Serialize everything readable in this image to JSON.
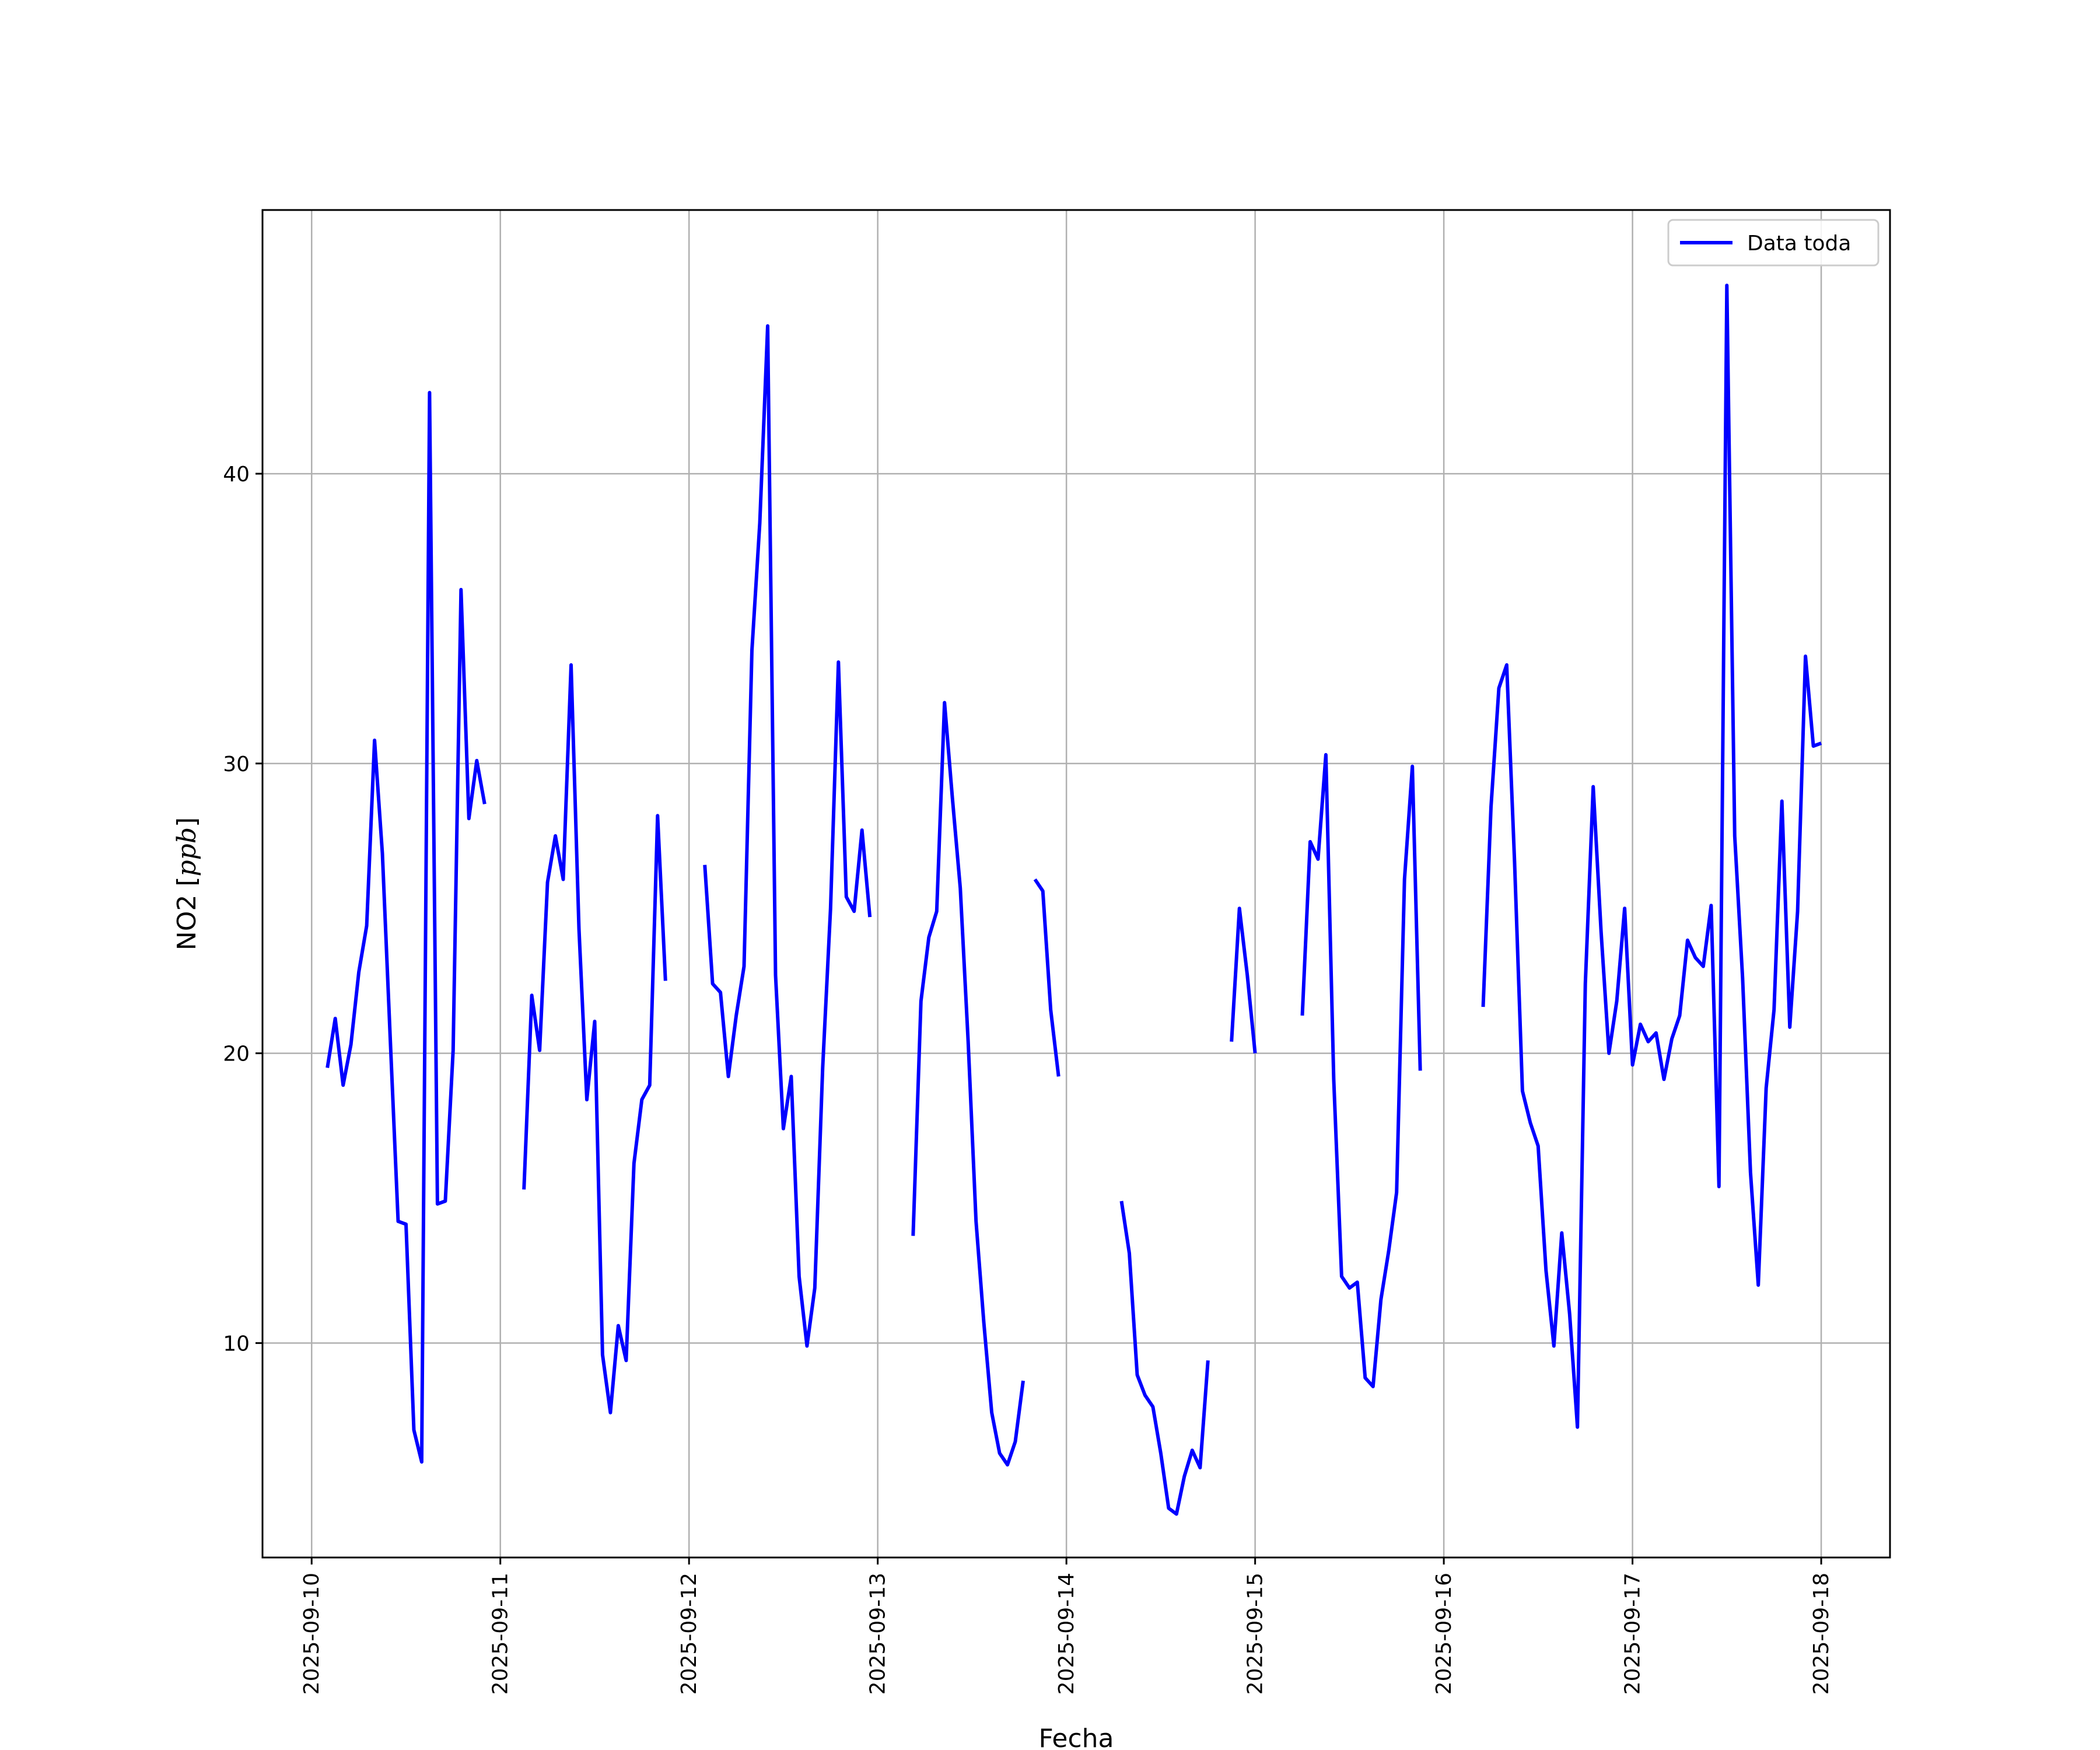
{
  "chart_data": {
    "type": "line",
    "xlabel": "Fecha",
    "ylabel_main": "NO2 [",
    "ylabel_unit": "ppb",
    "ylabel_close": "]",
    "x_ticks": [
      "2025-09-10",
      "2025-09-11",
      "2025-09-12",
      "2025-09-13",
      "2025-09-14",
      "2025-09-15",
      "2025-09-16",
      "2025-09-17",
      "2025-09-18"
    ],
    "y_ticks": [
      10,
      20,
      30,
      40
    ],
    "xlim": [
      "2025-09-09T17:45",
      "2025-09-18T08:45"
    ],
    "ylim": [
      2.6,
      49.1
    ],
    "grid": true,
    "legend_position": "top-right",
    "series": [
      {
        "name": "Data toda",
        "color": "#0000ff",
        "segments": [
          [
            [
              "2025-09-10T02:00",
              19.5
            ],
            [
              "2025-09-10T03:00",
              21.2
            ],
            [
              "2025-09-10T04:00",
              18.9
            ],
            [
              "2025-09-10T05:00",
              20.3
            ],
            [
              "2025-09-10T06:00",
              22.8
            ],
            [
              "2025-09-10T07:00",
              24.4
            ],
            [
              "2025-09-10T08:00",
              30.8
            ],
            [
              "2025-09-10T09:00",
              26.9
            ],
            [
              "2025-09-10T10:00",
              20.5
            ],
            [
              "2025-09-10T11:00",
              14.2
            ],
            [
              "2025-09-10T12:00",
              14.1
            ],
            [
              "2025-09-10T13:00",
              7.0
            ],
            [
              "2025-09-10T14:00",
              5.9
            ],
            [
              "2025-09-10T15:00",
              42.8
            ],
            [
              "2025-09-10T16:00",
              14.8
            ],
            [
              "2025-09-10T17:00",
              14.9
            ],
            [
              "2025-09-10T18:00",
              20.1
            ],
            [
              "2025-09-10T19:00",
              36.0
            ],
            [
              "2025-09-10T20:00",
              28.1
            ],
            [
              "2025-09-10T21:00",
              30.1
            ],
            [
              "2025-09-10T22:00",
              28.6
            ]
          ],
          [
            [
              "2025-09-11T03:00",
              15.3
            ],
            [
              "2025-09-11T04:00",
              22.0
            ],
            [
              "2025-09-11T05:00",
              20.1
            ],
            [
              "2025-09-11T06:00",
              25.9
            ],
            [
              "2025-09-11T07:00",
              27.5
            ],
            [
              "2025-09-11T08:00",
              26.0
            ],
            [
              "2025-09-11T09:00",
              33.4
            ],
            [
              "2025-09-11T10:00",
              24.3
            ],
            [
              "2025-09-11T11:00",
              18.4
            ],
            [
              "2025-09-11T12:00",
              21.1
            ],
            [
              "2025-09-11T13:00",
              9.6
            ],
            [
              "2025-09-11T14:00",
              7.6
            ],
            [
              "2025-09-11T15:00",
              10.6
            ],
            [
              "2025-09-11T16:00",
              9.4
            ],
            [
              "2025-09-11T17:00",
              16.2
            ],
            [
              "2025-09-11T18:00",
              18.4
            ],
            [
              "2025-09-11T19:00",
              18.9
            ],
            [
              "2025-09-11T20:00",
              28.2
            ],
            [
              "2025-09-11T21:00",
              22.5
            ]
          ],
          [
            [
              "2025-09-12T02:00",
              26.5
            ],
            [
              "2025-09-12T03:00",
              22.4
            ],
            [
              "2025-09-12T04:00",
              22.1
            ],
            [
              "2025-09-12T05:00",
              19.2
            ],
            [
              "2025-09-12T06:00",
              21.3
            ],
            [
              "2025-09-12T07:00",
              23.0
            ],
            [
              "2025-09-12T08:00",
              33.9
            ],
            [
              "2025-09-12T09:00",
              38.3
            ],
            [
              "2025-09-12T10:00",
              45.1
            ],
            [
              "2025-09-12T11:00",
              22.7
            ],
            [
              "2025-09-12T12:00",
              17.4
            ],
            [
              "2025-09-12T13:00",
              19.2
            ],
            [
              "2025-09-12T14:00",
              12.3
            ],
            [
              "2025-09-12T15:00",
              9.9
            ],
            [
              "2025-09-12T16:00",
              11.9
            ],
            [
              "2025-09-12T17:00",
              19.5
            ],
            [
              "2025-09-12T18:00",
              25.0
            ],
            [
              "2025-09-12T19:00",
              33.5
            ],
            [
              "2025-09-12T20:00",
              25.4
            ],
            [
              "2025-09-12T21:00",
              24.9
            ],
            [
              "2025-09-12T22:00",
              27.7
            ],
            [
              "2025-09-12T23:00",
              24.7
            ]
          ],
          [
            [
              "2025-09-13T04:30",
              13.7
            ],
            [
              "2025-09-13T05:30",
              21.8
            ],
            [
              "2025-09-13T06:30",
              24.0
            ],
            [
              "2025-09-13T07:30",
              24.9
            ],
            [
              "2025-09-13T08:30",
              32.1
            ],
            [
              "2025-09-13T09:30",
              28.8
            ],
            [
              "2025-09-13T10:30",
              25.7
            ],
            [
              "2025-09-13T11:30",
              20.4
            ],
            [
              "2025-09-13T12:30",
              14.2
            ],
            [
              "2025-09-13T13:30",
              10.7
            ],
            [
              "2025-09-13T14:30",
              7.6
            ],
            [
              "2025-09-13T15:30",
              6.2
            ],
            [
              "2025-09-13T16:30",
              5.8
            ],
            [
              "2025-09-13T17:30",
              6.6
            ],
            [
              "2025-09-13T18:30",
              8.7
            ]
          ],
          [
            [
              "2025-09-13T20:00",
              26.0
            ],
            [
              "2025-09-13T21:00",
              25.6
            ],
            [
              "2025-09-13T22:00",
              21.5
            ],
            [
              "2025-09-13T23:00",
              19.2
            ]
          ],
          [
            [
              "2025-09-14T07:00",
              14.9
            ],
            [
              "2025-09-14T08:00",
              13.1
            ],
            [
              "2025-09-14T09:00",
              8.9
            ],
            [
              "2025-09-14T10:00",
              8.2
            ],
            [
              "2025-09-14T11:00",
              7.8
            ],
            [
              "2025-09-14T12:00",
              6.2
            ],
            [
              "2025-09-14T13:00",
              4.3
            ],
            [
              "2025-09-14T14:00",
              4.1
            ],
            [
              "2025-09-14T15:00",
              5.4
            ],
            [
              "2025-09-14T16:00",
              6.3
            ],
            [
              "2025-09-14T17:00",
              5.7
            ],
            [
              "2025-09-14T18:00",
              9.4
            ]
          ],
          [
            [
              "2025-09-14T21:00",
              20.4
            ],
            [
              "2025-09-14T22:00",
              25.0
            ],
            [
              "2025-09-14T23:00",
              22.7
            ],
            [
              "2025-09-15T00:00",
              20.0
            ]
          ],
          [
            [
              "2025-09-15T06:00",
              21.3
            ],
            [
              "2025-09-15T07:00",
              27.3
            ],
            [
              "2025-09-15T08:00",
              26.7
            ],
            [
              "2025-09-15T09:00",
              30.3
            ],
            [
              "2025-09-15T10:00",
              19.1
            ],
            [
              "2025-09-15T11:00",
              12.3
            ],
            [
              "2025-09-15T12:00",
              11.9
            ],
            [
              "2025-09-15T13:00",
              12.1
            ],
            [
              "2025-09-15T14:00",
              8.8
            ],
            [
              "2025-09-15T15:00",
              8.5
            ],
            [
              "2025-09-15T16:00",
              11.5
            ],
            [
              "2025-09-15T17:00",
              13.2
            ],
            [
              "2025-09-15T18:00",
              15.2
            ],
            [
              "2025-09-15T19:00",
              26.0
            ],
            [
              "2025-09-15T20:00",
              29.9
            ],
            [
              "2025-09-15T21:00",
              19.4
            ]
          ],
          [
            [
              "2025-09-16T05:00",
              21.6
            ],
            [
              "2025-09-16T06:00",
              28.5
            ],
            [
              "2025-09-16T07:00",
              32.6
            ],
            [
              "2025-09-16T08:00",
              33.4
            ],
            [
              "2025-09-16T09:00",
              26.6
            ],
            [
              "2025-09-16T10:00",
              18.7
            ],
            [
              "2025-09-16T11:00",
              17.6
            ],
            [
              "2025-09-16T12:00",
              16.8
            ],
            [
              "2025-09-16T13:00",
              12.5
            ],
            [
              "2025-09-16T14:00",
              9.9
            ],
            [
              "2025-09-16T15:00",
              13.8
            ],
            [
              "2025-09-16T16:00",
              11.0
            ],
            [
              "2025-09-16T17:00",
              7.1
            ],
            [
              "2025-09-16T18:00",
              22.4
            ],
            [
              "2025-09-16T19:00",
              29.2
            ],
            [
              "2025-09-16T20:00",
              24.2
            ],
            [
              "2025-09-16T21:00",
              20.0
            ],
            [
              "2025-09-16T22:00",
              21.8
            ],
            [
              "2025-09-16T23:00",
              25.0
            ],
            [
              "2025-09-17T00:00",
              19.6
            ],
            [
              "2025-09-17T01:00",
              21.0
            ],
            [
              "2025-09-17T02:00",
              20.4
            ],
            [
              "2025-09-17T03:00",
              20.7
            ],
            [
              "2025-09-17T04:00",
              19.1
            ],
            [
              "2025-09-17T05:00",
              20.5
            ],
            [
              "2025-09-17T06:00",
              21.3
            ],
            [
              "2025-09-17T07:00",
              23.9
            ],
            [
              "2025-09-17T08:00",
              23.3
            ],
            [
              "2025-09-17T09:00",
              23.0
            ],
            [
              "2025-09-17T10:00",
              25.1
            ],
            [
              "2025-09-17T11:00",
              15.4
            ],
            [
              "2025-09-17T12:00",
              46.5
            ],
            [
              "2025-09-17T13:00",
              27.5
            ],
            [
              "2025-09-17T14:00",
              22.6
            ],
            [
              "2025-09-17T15:00",
              15.9
            ],
            [
              "2025-09-17T16:00",
              12.0
            ],
            [
              "2025-09-17T17:00",
              18.8
            ],
            [
              "2025-09-17T18:00",
              21.5
            ],
            [
              "2025-09-17T19:00",
              28.7
            ],
            [
              "2025-09-17T20:00",
              20.9
            ],
            [
              "2025-09-17T21:00",
              24.9
            ],
            [
              "2025-09-17T22:00",
              33.7
            ],
            [
              "2025-09-17T23:00",
              30.6
            ],
            [
              "2025-09-18T00:00",
              30.7
            ]
          ]
        ]
      }
    ]
  }
}
